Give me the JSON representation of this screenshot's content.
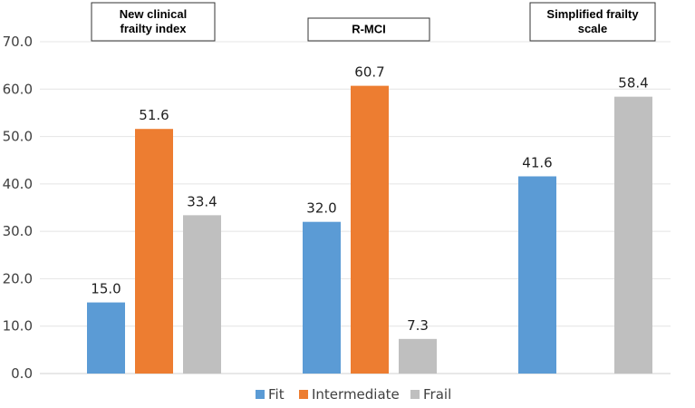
{
  "chart_data": {
    "type": "bar",
    "title": "",
    "xlabel": "",
    "ylabel": "",
    "ylim": [
      0,
      70
    ],
    "yticks": [
      "0.0",
      "10.0",
      "20.0",
      "30.0",
      "40.0",
      "50.0",
      "60.0",
      "70.0"
    ],
    "grid": true,
    "legend_position": "bottom",
    "colors": {
      "Fit": "#5b9bd5",
      "Intermediate": "#ed7d31",
      "Frail": "#bfbfbf"
    },
    "groups": [
      {
        "title_lines": [
          "New clinical",
          "frailty index"
        ],
        "bars": [
          {
            "series": "Fit",
            "value": 15.0,
            "label": "15.0"
          },
          {
            "series": "Intermediate",
            "value": 51.6,
            "label": "51.6"
          },
          {
            "series": "Frail",
            "value": 33.4,
            "label": "33.4"
          }
        ]
      },
      {
        "title_lines": [
          "R-MCI"
        ],
        "bars": [
          {
            "series": "Fit",
            "value": 32.0,
            "label": "32.0"
          },
          {
            "series": "Intermediate",
            "value": 60.7,
            "label": "60.7"
          },
          {
            "series": "Frail",
            "value": 7.3,
            "label": "7.3"
          }
        ]
      },
      {
        "title_lines": [
          "Simplified frailty",
          "scale"
        ],
        "bars": [
          {
            "series": "Fit",
            "value": 41.6,
            "label": "41.6"
          },
          {
            "series": "Frail",
            "value": 58.4,
            "label": "58.4"
          }
        ]
      }
    ],
    "legend": [
      "Fit",
      "Intermediate",
      "Frail"
    ]
  }
}
